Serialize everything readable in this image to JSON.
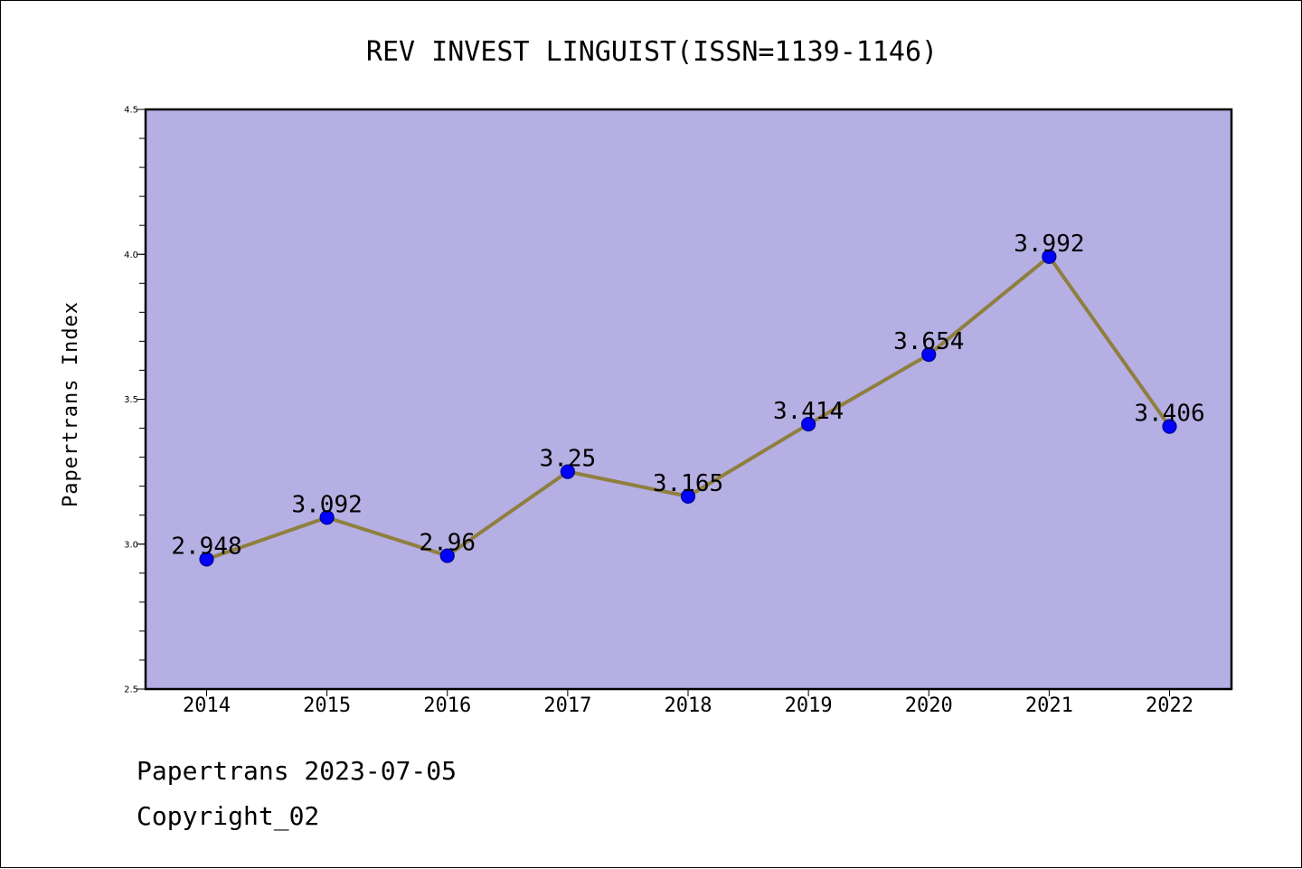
{
  "chart_data": {
    "type": "line",
    "title": "REV INVEST LINGUIST(ISSN=1139-1146)",
    "xlabel": "",
    "ylabel": "Papertrans Index",
    "categories": [
      "2014",
      "2015",
      "2016",
      "2017",
      "2018",
      "2019",
      "2020",
      "2021",
      "2022"
    ],
    "series": [
      {
        "values": [
          2.948,
          3.092,
          2.96,
          3.25,
          3.165,
          3.414,
          3.654,
          3.992,
          3.406
        ],
        "labels": [
          "2.948",
          "3.092",
          "2.96",
          "3.25",
          "3.165",
          "3.414",
          "3.654",
          "3.992",
          "3.406"
        ]
      }
    ],
    "ylim": [
      2.5,
      4.5
    ],
    "yticks": [
      "2.5",
      "3.0",
      "3.5",
      "4.0",
      "4.5"
    ],
    "grid": false,
    "colors": {
      "plot_background": "#b5afe3",
      "line": "#8f7f3e",
      "marker": "#0000ff"
    }
  },
  "footer": {
    "date_text": "Papertrans 2023-07-05",
    "copyright_text": "Copyright_02"
  }
}
